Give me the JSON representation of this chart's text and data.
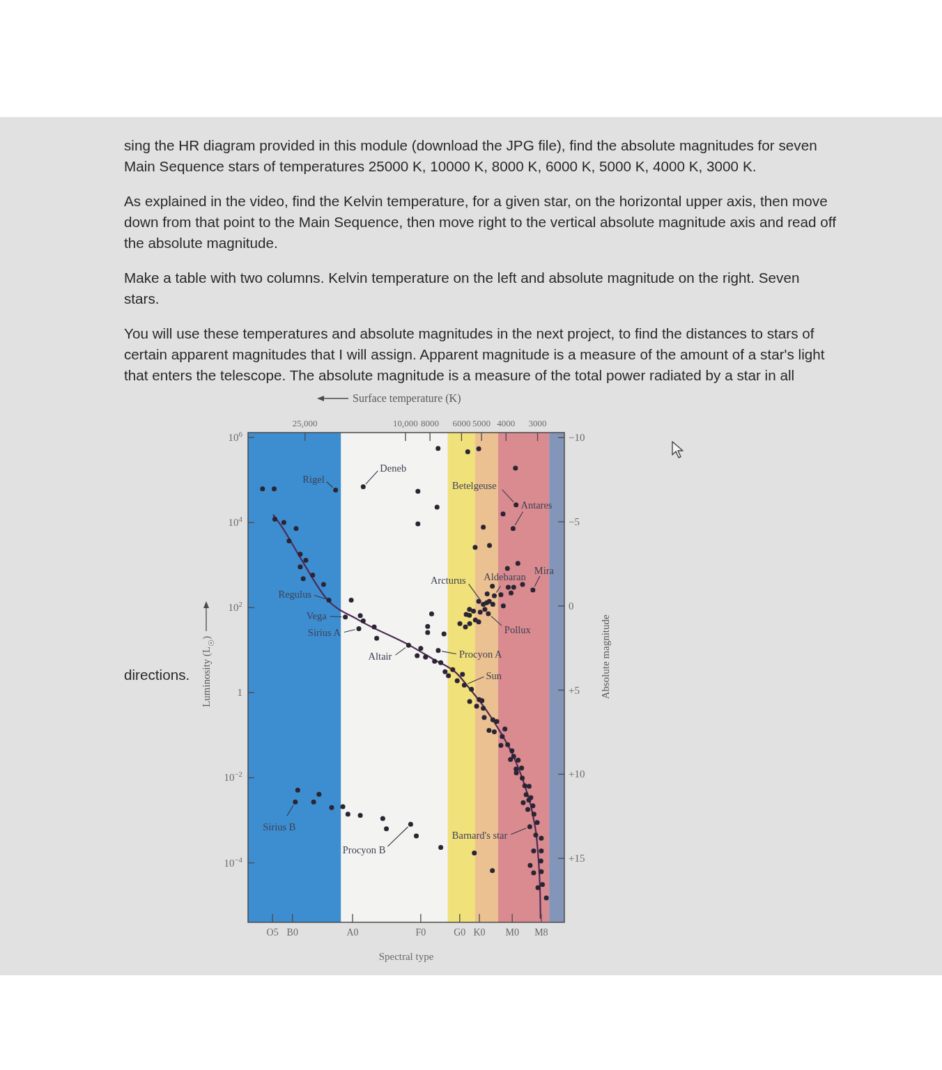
{
  "chart_data": {
    "type": "scatter",
    "xlabel": "Surface temperature (K)",
    "x2label": "Spectral type",
    "ylabel": "Luminosity (L$_{☉}$)",
    "y2label": "Absolute magnitude",
    "xlim": [
      42000,
      2350
    ],
    "xticks": [
      {
        "value": 25000,
        "label": "25,000"
      },
      {
        "value": 10000,
        "label": "10,000"
      },
      8000,
      6000,
      5000,
      4000,
      3000
    ],
    "ylim": [
      4e-06,
      1300000
    ],
    "yticks": [
      {
        "value": 1000000,
        "label": "10$^{6}$"
      },
      {
        "value": 10000,
        "label": "10$^{4}$"
      },
      {
        "value": 100,
        "label": "10$^{2}$"
      },
      1,
      {
        "value": 0.01,
        "label": "10$^{−2}$"
      },
      {
        "value": 0.0001,
        "label": "10$^{−4}$"
      }
    ],
    "y2lim": [
      18.8,
      -10.3
    ],
    "y2ticks": [
      {
        "value": -10,
        "label": "−10"
      },
      {
        "value": -5,
        "label": "−5"
      },
      0,
      {
        "value": 5,
        "label": "+5"
      },
      {
        "value": 10,
        "label": "+10"
      },
      {
        "value": 15,
        "label": "+15"
      }
    ],
    "log": "xy",
    "marker": "circle",
    "bands": [
      {
        "axis": "x",
        "from": 42000,
        "to": 18000,
        "color": "#3d8ed1"
      },
      {
        "axis": "x",
        "from": 18000,
        "to": 6800,
        "color": "#f3f3f1"
      },
      {
        "axis": "x",
        "from": 6800,
        "to": 5300,
        "color": "#f1e17a"
      },
      {
        "axis": "x",
        "from": 5300,
        "to": 4300,
        "color": "#ecc191"
      },
      {
        "axis": "x",
        "from": 4300,
        "to": 2700,
        "color": "#d98b90"
      },
      {
        "axis": "x",
        "from": 2700,
        "to": 2350,
        "color": "#8396ba"
      }
    ],
    "series": [
      {
        "type": "scatter",
        "color": "#2b2433",
        "x": [
          36800,
          33100,
          18900,
          14700,
          8930,
          7430,
          5670,
          5130,
          3670,
          3650,
          4110,
          7500,
          8930,
          4920,
          3750,
          32900,
          30300,
          27100,
          28900,
          26100,
          24800,
          26100,
          23300,
          25400,
          21100,
          20100,
          16400,
          17300,
          15100,
          14700,
          13300,
          15300,
          13000,
          9720,
          8700,
          8990,
          8330,
          7880,
          8170,
          8170,
          7040,
          7420,
          7670,
          7250,
          6500,
          6970,
          6760,
          5950,
          6240,
          5850,
          5480,
          5300,
          4650,
          3590,
          3950,
          3440,
          3130,
          3920,
          3730,
          3820,
          4530,
          4450,
          4750,
          4190,
          4100,
          4660,
          4510,
          4770,
          4920,
          4700,
          4850,
          5060,
          5130,
          5380,
          5580,
          5580,
          5750,
          5290,
          5130,
          5570,
          5790,
          6090,
          5570,
          5110,
          4980,
          5230,
          4920,
          4880,
          4510,
          4350,
          4670,
          4450,
          4040,
          4140,
          4190,
          3940,
          3790,
          3730,
          3840,
          3580,
          3650,
          3470,
          3640,
          3450,
          3370,
          3240,
          3330,
          3190,
          3250,
          3420,
          3130,
          3280,
          3100,
          3010,
          3220,
          3050,
          2900,
          3110,
          2900,
          2910,
          3210,
          2900,
          3110,
          2870,
          2990,
          2770,
          4530,
          26700,
          22000,
          27300,
          23100,
          19600,
          17700,
          16900,
          15100,
          12300,
          11900,
          9540,
          9060,
          7250,
          5340
        ],
        "values": [
          62000,
          62000,
          58000,
          69000,
          54000,
          550000,
          460000,
          540000,
          190000,
          26000,
          16000,
          23000,
          9300,
          7800,
          7200,
          12000,
          10000,
          7200,
          3700,
          1800,
          1300,
          910,
          580,
          480,
          350,
          150,
          150,
          60,
          65,
          49,
          35,
          32,
          19,
          13,
          11,
          7.4,
          6.9,
          71,
          36,
          26,
          24,
          9.8,
          5.5,
          5.1,
          3.5,
          3.1,
          2.5,
          2.7,
          1.9,
          1.5,
          1.2,
          2600,
          2900,
          1100,
          830,
          350,
          260,
          300,
          300,
          220,
          320,
          190,
          210,
          200,
          110,
          140,
          120,
          130,
          120,
          72,
          91,
          78,
          140,
          83,
          91,
          66,
          69,
          51,
          46,
          42,
          35,
          42,
          0.62,
          0.69,
          0.65,
          0.48,
          0.43,
          0.26,
          0.23,
          0.21,
          0.13,
          0.12,
          0.14,
          0.093,
          0.058,
          0.06,
          0.043,
          0.032,
          0.027,
          0.026,
          0.016,
          0.017,
          0.013,
          0.0098,
          0.0065,
          0.0063,
          0.004,
          0.0034,
          0.003,
          0.0026,
          0.0022,
          0.0018,
          0.0014,
          0.00089,
          0.00071,
          0.00045,
          0.00038,
          0.00019,
          0.00019,
          0.00011,
          8.7e-05,
          6.2e-05,
          5.8e-05,
          3.1e-05,
          2.6e-05,
          1.5e-05,
          6.6e-05,
          0.0051,
          0.0041,
          0.0027,
          0.0027,
          0.002,
          0.0021,
          0.0014,
          0.0013,
          0.0011,
          0.00063,
          0.00081,
          0.00043,
          0.00023,
          0.00017
        ]
      },
      {
        "type": "line",
        "color": "#4d2b57",
        "marker": "none",
        "x": [
          33300,
          30800,
          26100,
          20500,
          15400,
          9630,
          7790,
          6290,
          5480,
          4910,
          4180,
          3720,
          3350,
          3130,
          3000,
          2930,
          2920
        ],
        "values": [
          15000,
          7800,
          1500,
          160,
          52,
          13,
          6.2,
          2.9,
          1.1,
          0.48,
          0.11,
          0.03,
          0.0058,
          0.0013,
          0.00022,
          1.7e-05,
          5e-06
        ]
      }
    ],
    "annotations": [
      "sing the HR diagram provided in this module (download the JPG file), find the absolute magnitudes for seven Main Sequence stars of temperatures 25000 K, 10000 K, 8000 K, 6000 K, 5000 K, 4000 K, 3000 K.",
      "As explained in the video, find the Kelvin temperature, for a given star, on the horizontal upper axis, then move down from that point to the Main Sequence, then move right to the vertical absolute magnitude axis and read off the absolute magnitude.",
      "Make a table with two columns. Kelvin temperature on the left and absolute magnitude on the right. Seven stars.",
      "You will use these temperatures and absolute magnitudes in the next project, to find the distances to stars of certain apparent magnitudes that I will assign. Apparent magnitude is a measure of the amount of a star's light that enters the telescope. The absolute magnitude is a measure of the total power radiated by a star in all directions.",
      {
        "text": "Rigel",
        "x": 18900,
        "y": 58000
      },
      {
        "text": "Deneb",
        "x": 14700,
        "y": 69000
      },
      {
        "text": "Betelgeuse",
        "x": 3650,
        "y": 26000
      },
      {
        "text": "Antares",
        "x": 3750,
        "y": 7200
      },
      {
        "text": "Arcturus",
        "x": 4920,
        "y": 120
      },
      {
        "text": "Aldebaran",
        "x": 4450,
        "y": 190
      },
      {
        "text": "Mira",
        "x": 3130,
        "y": 260
      },
      {
        "text": "Regulus",
        "x": 20100,
        "y": 150
      },
      {
        "text": "Vega",
        "x": 17300,
        "y": 60
      },
      {
        "text": "Sirius A",
        "x": 15300,
        "y": 32
      },
      {
        "text": "Pollux",
        "x": 4700,
        "y": 72
      },
      {
        "text": "Altair",
        "x": 9720,
        "y": 13
      },
      {
        "text": "Procyon A",
        "x": 7420,
        "y": 9.8
      },
      {
        "text": "Sun",
        "x": 5850,
        "y": 1.5
      },
      {
        "text": "Sirius B",
        "x": 27300,
        "y": 0.0027
      },
      {
        "text": "Procyon B",
        "x": 9540,
        "y": 0.00081
      },
      {
        "text": "Barnard's star",
        "x": 3220,
        "y": 0.00071
      },
      "O5",
      "B0",
      "A0",
      "F0",
      "G0",
      "K0",
      "M0",
      "M8"
    ]
  }
}
